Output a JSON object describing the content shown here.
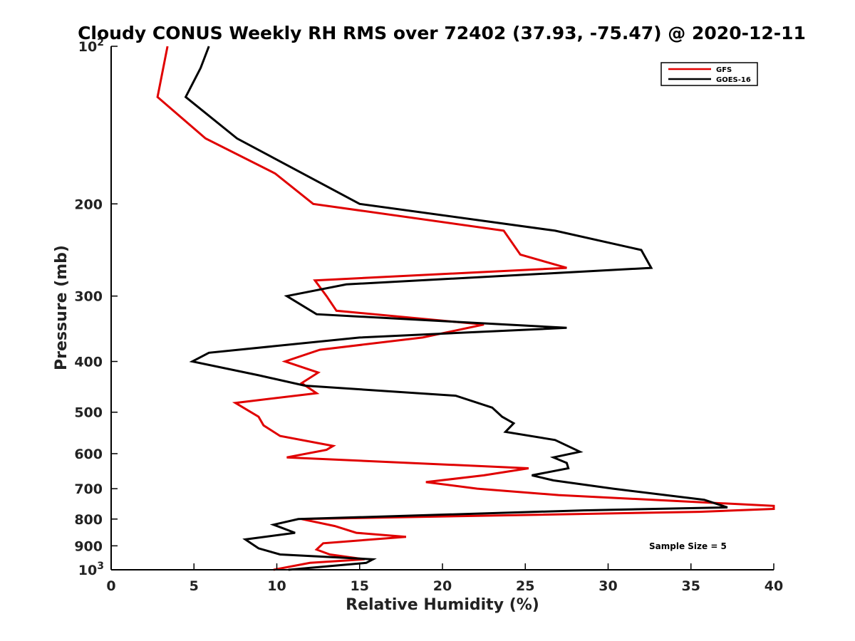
{
  "chart_data": {
    "type": "line",
    "title": "Cloudy CONUS Weekly RH RMS over 72402 (37.93, -75.47) @ 2020-12-11",
    "xlabel": "Relative Humidity (%)",
    "ylabel": "Pressure (mb)",
    "xlim": [
      0,
      40
    ],
    "ylim": [
      100,
      1000
    ],
    "y_scale": "log",
    "y_reversed": true,
    "grid": false,
    "legend_position": "top-right",
    "x_ticks": [
      "0",
      "5",
      "10",
      "15",
      "20",
      "25",
      "30",
      "35",
      "40"
    ],
    "y_ticks": [
      {
        "value": 100,
        "base": "10",
        "exp": "2"
      },
      {
        "value": 200,
        "label": "200"
      },
      {
        "value": 300,
        "label": "300"
      },
      {
        "value": 400,
        "label": "400"
      },
      {
        "value": 500,
        "label": "500"
      },
      {
        "value": 600,
        "label": "600"
      },
      {
        "value": 700,
        "label": "700"
      },
      {
        "value": 800,
        "label": "800"
      },
      {
        "value": 900,
        "label": "900"
      },
      {
        "value": 1000,
        "base": "10",
        "exp": "3"
      }
    ],
    "series": [
      {
        "name": "GFS",
        "color": "#e00000",
        "points": [
          [
            3.4,
            100
          ],
          [
            2.8,
            125
          ],
          [
            5.7,
            150
          ],
          [
            9.9,
            175
          ],
          [
            12.2,
            200
          ],
          [
            23.7,
            225
          ],
          [
            24.7,
            250
          ],
          [
            27.5,
            265
          ],
          [
            12.3,
            280
          ],
          [
            13.0,
            300
          ],
          [
            13.6,
            320
          ],
          [
            22.5,
            340
          ],
          [
            18.8,
            360
          ],
          [
            12.6,
            380
          ],
          [
            10.5,
            400
          ],
          [
            12.5,
            420
          ],
          [
            11.5,
            440
          ],
          [
            12.4,
            460
          ],
          [
            7.5,
            480
          ],
          [
            8.9,
            510
          ],
          [
            9.2,
            530
          ],
          [
            10.2,
            555
          ],
          [
            13.4,
            580
          ],
          [
            13.0,
            590
          ],
          [
            10.6,
            610
          ],
          [
            25.2,
            640
          ],
          [
            22.5,
            660
          ],
          [
            19.0,
            680
          ],
          [
            22.1,
            700
          ],
          [
            27.0,
            720
          ],
          [
            40.0,
            755
          ],
          [
            40.0,
            765
          ],
          [
            35.5,
            775
          ],
          [
            11.5,
            800
          ],
          [
            13.5,
            825
          ],
          [
            14.8,
            850
          ],
          [
            17.8,
            865
          ],
          [
            12.8,
            890
          ],
          [
            12.4,
            915
          ],
          [
            13.2,
            935
          ],
          [
            15.3,
            955
          ],
          [
            12.0,
            970
          ],
          [
            9.8,
            1000
          ]
        ]
      },
      {
        "name": "GOES-16",
        "color": "#000000",
        "points": [
          [
            5.9,
            100
          ],
          [
            5.4,
            110
          ],
          [
            4.5,
            125
          ],
          [
            7.6,
            150
          ],
          [
            15.0,
            200
          ],
          [
            26.8,
            225
          ],
          [
            32.0,
            245
          ],
          [
            32.6,
            265
          ],
          [
            14.2,
            285
          ],
          [
            10.6,
            300
          ],
          [
            12.4,
            325
          ],
          [
            27.5,
            345
          ],
          [
            15.0,
            360
          ],
          [
            5.9,
            385
          ],
          [
            4.9,
            400
          ],
          [
            8.9,
            425
          ],
          [
            11.7,
            445
          ],
          [
            20.8,
            465
          ],
          [
            23.0,
            490
          ],
          [
            23.6,
            510
          ],
          [
            24.3,
            525
          ],
          [
            23.8,
            545
          ],
          [
            26.8,
            565
          ],
          [
            28.3,
            595
          ],
          [
            26.7,
            610
          ],
          [
            27.5,
            625
          ],
          [
            27.6,
            640
          ],
          [
            25.4,
            660
          ],
          [
            26.7,
            675
          ],
          [
            30.3,
            700
          ],
          [
            35.8,
            735
          ],
          [
            37.2,
            760
          ],
          [
            28.5,
            770
          ],
          [
            11.3,
            800
          ],
          [
            9.8,
            820
          ],
          [
            11.1,
            850
          ],
          [
            8.1,
            875
          ],
          [
            8.9,
            910
          ],
          [
            10.2,
            935
          ],
          [
            15.8,
            955
          ],
          [
            15.4,
            970
          ],
          [
            10.7,
            1000
          ]
        ]
      }
    ],
    "annotations": [
      "Sample Size = 5"
    ]
  }
}
